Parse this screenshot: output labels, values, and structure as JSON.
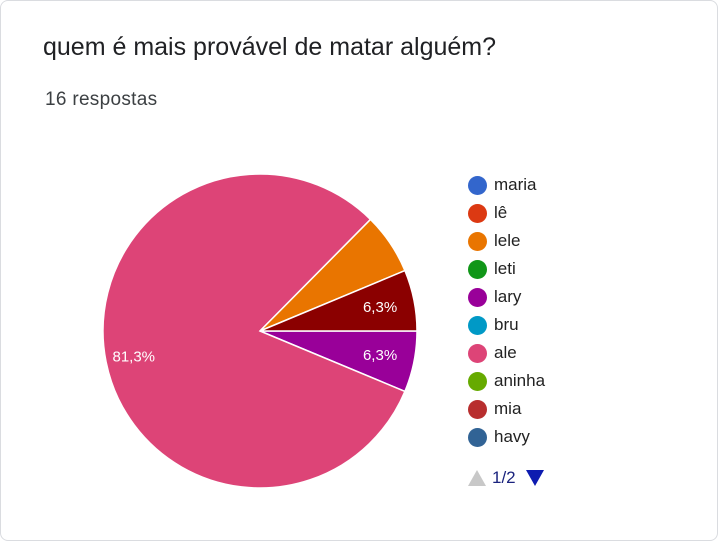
{
  "card": {
    "question": "quem é mais provável de matar alguém?",
    "responses": "16 respostas"
  },
  "chart_data": {
    "type": "pie",
    "slices": [
      {
        "label": "maria",
        "value": 0,
        "color": "#3366cc"
      },
      {
        "label": "lê",
        "value": 0,
        "color": "#dc3912"
      },
      {
        "label": "lele",
        "value": 6.3,
        "color": "#e97500",
        "display": ""
      },
      {
        "label": "leti",
        "value": 0,
        "color": "#109618"
      },
      {
        "label": "lary",
        "value": 6.3,
        "color": "#990099",
        "display": "6,3%"
      },
      {
        "label": "bru",
        "value": 0,
        "color": "#0099c6"
      },
      {
        "label": "ale",
        "value": 81.3,
        "color": "#dd4477",
        "display": "81,3%"
      },
      {
        "label": "aninha",
        "value": 0,
        "color": "#66aa00"
      },
      {
        "label": "mia",
        "value": 0,
        "color": "#b82e2e"
      },
      {
        "label": "havy",
        "value": 0,
        "color": "#316395"
      },
      {
        "label": "",
        "value": 6.3,
        "color": "#8b0000",
        "display": "6,3%"
      }
    ],
    "legend_position": "right"
  },
  "pager": {
    "text": "1/2"
  }
}
